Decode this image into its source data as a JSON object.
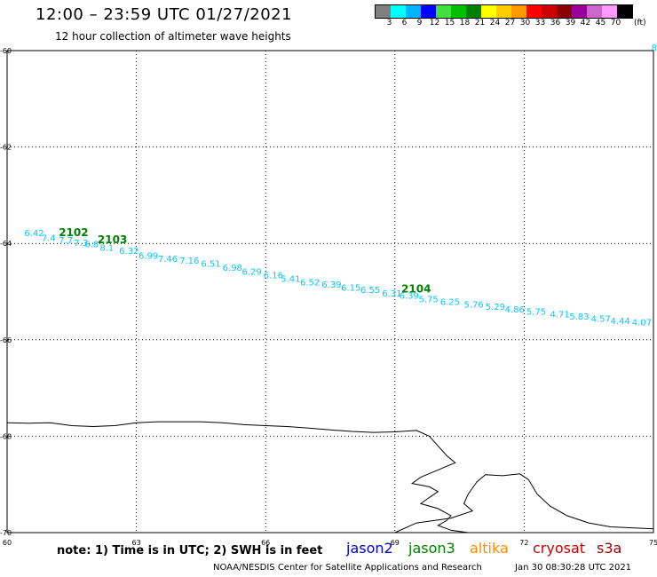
{
  "header": {
    "title": "12:00 – 23:59 UTC 01/27/2021",
    "subtitle": "12 hour collection of altimeter wave heights"
  },
  "legend": {
    "colors": [
      "#808080",
      "#00ffff",
      "#00b4ff",
      "#0000ff",
      "#40e040",
      "#00c000",
      "#008000",
      "#ffff00",
      "#ffcc00",
      "#ff9900",
      "#ff0000",
      "#cc0000",
      "#880000",
      "#990099",
      "#cc66cc",
      "#ff99ff",
      "#000000"
    ],
    "labels": [
      "3",
      "6",
      "9",
      "12",
      "15",
      "18",
      "21",
      "24",
      "27",
      "30",
      "33",
      "36",
      "39",
      "42",
      "45",
      "70"
    ],
    "units": "(ft)"
  },
  "map": {
    "lon_range": [
      60,
      75
    ],
    "lat_range": [
      -70,
      -60
    ],
    "x_ticks": [
      "60",
      "63",
      "66",
      "69",
      "72",
      "75"
    ],
    "y_ticks": [
      "-60",
      "-62",
      "-64",
      "-66",
      "-68",
      "-70"
    ],
    "track_color": "#00c8ff",
    "pass_color": "#008000",
    "passes": [
      {
        "label": "2102",
        "lon": 61.2,
        "lat": -63.85
      },
      {
        "label": "2103",
        "lon": 62.1,
        "lat": -64.0
      },
      {
        "label": "2104",
        "lon": 69.15,
        "lat": -65.02
      }
    ],
    "swh_points": [
      {
        "lon": 60.4,
        "lat": -63.85,
        "v": "6.42"
      },
      {
        "lon": 60.8,
        "lat": -63.95,
        "v": "7.4"
      },
      {
        "lon": 61.2,
        "lat": -64.0,
        "v": "7.7"
      },
      {
        "lon": 61.55,
        "lat": -64.05,
        "v": "7.3"
      },
      {
        "lon": 61.8,
        "lat": -64.08,
        "v": "6.8"
      },
      {
        "lon": 62.15,
        "lat": -64.15,
        "v": "8.1"
      },
      {
        "lon": 62.6,
        "lat": -64.22,
        "v": "6.32"
      },
      {
        "lon": 63.05,
        "lat": -64.32,
        "v": "6.99"
      },
      {
        "lon": 63.5,
        "lat": -64.38,
        "v": "7.46"
      },
      {
        "lon": 64.0,
        "lat": -64.42,
        "v": "7.16"
      },
      {
        "lon": 64.5,
        "lat": -64.48,
        "v": "6.51"
      },
      {
        "lon": 65.0,
        "lat": -64.57,
        "v": "6.98"
      },
      {
        "lon": 65.45,
        "lat": -64.65,
        "v": "6.29"
      },
      {
        "lon": 65.95,
        "lat": -64.72,
        "v": "6.16"
      },
      {
        "lon": 66.35,
        "lat": -64.8,
        "v": "5.41"
      },
      {
        "lon": 66.8,
        "lat": -64.87,
        "v": "6.52"
      },
      {
        "lon": 67.3,
        "lat": -64.92,
        "v": "6.39"
      },
      {
        "lon": 67.75,
        "lat": -64.98,
        "v": "6.15"
      },
      {
        "lon": 68.2,
        "lat": -65.03,
        "v": "6.55"
      },
      {
        "lon": 68.7,
        "lat": -65.1,
        "v": "6.31"
      },
      {
        "lon": 69.1,
        "lat": -65.15,
        "v": "6.39"
      },
      {
        "lon": 69.55,
        "lat": -65.22,
        "v": "5.75"
      },
      {
        "lon": 70.05,
        "lat": -65.28,
        "v": "6.25"
      },
      {
        "lon": 70.6,
        "lat": -65.33,
        "v": "5.76"
      },
      {
        "lon": 71.1,
        "lat": -65.38,
        "v": "5.29"
      },
      {
        "lon": 71.55,
        "lat": -65.43,
        "v": "4.86"
      },
      {
        "lon": 72.05,
        "lat": -65.48,
        "v": "5.75"
      },
      {
        "lon": 72.6,
        "lat": -65.53,
        "v": "4.71"
      },
      {
        "lon": 73.05,
        "lat": -65.58,
        "v": "5.83"
      },
      {
        "lon": 73.55,
        "lat": -65.63,
        "v": "4.57"
      },
      {
        "lon": 74.0,
        "lat": -65.67,
        "v": "4.44"
      },
      {
        "lon": 74.5,
        "lat": -65.7,
        "v": "4.07"
      },
      {
        "lon": 74.95,
        "lat": -60.0,
        "v": "8."
      }
    ],
    "coastline": [
      [
        60.0,
        -67.72
      ],
      [
        60.5,
        -67.73
      ],
      [
        61.0,
        -67.72
      ],
      [
        61.5,
        -67.78
      ],
      [
        62.0,
        -67.8
      ],
      [
        62.5,
        -67.78
      ],
      [
        63.0,
        -67.72
      ],
      [
        63.5,
        -67.7
      ],
      [
        64.0,
        -67.7
      ],
      [
        64.5,
        -67.7
      ],
      [
        65.0,
        -67.72
      ],
      [
        65.5,
        -67.76
      ],
      [
        66.0,
        -67.78
      ],
      [
        66.5,
        -67.8
      ],
      [
        67.0,
        -67.83
      ],
      [
        67.5,
        -67.87
      ],
      [
        68.0,
        -67.9
      ],
      [
        68.5,
        -67.92
      ],
      [
        69.0,
        -67.91
      ],
      [
        69.5,
        -67.88
      ],
      [
        69.8,
        -68.0
      ],
      [
        70.0,
        -68.2
      ],
      [
        70.2,
        -68.4
      ],
      [
        70.4,
        -68.55
      ],
      [
        70.0,
        -68.7
      ],
      [
        69.6,
        -68.85
      ],
      [
        69.4,
        -68.98
      ],
      [
        69.8,
        -69.05
      ],
      [
        70.0,
        -69.15
      ],
      [
        69.8,
        -69.27
      ],
      [
        69.6,
        -69.4
      ],
      [
        70.0,
        -69.5
      ],
      [
        70.3,
        -69.65
      ],
      [
        70.2,
        -69.75
      ],
      [
        70.0,
        -69.85
      ],
      [
        70.3,
        -69.95
      ],
      [
        70.7,
        -70.0
      ]
    ],
    "coastline2": [
      [
        69.0,
        -70.0
      ],
      [
        69.5,
        -69.8
      ],
      [
        70.3,
        -69.7
      ],
      [
        70.8,
        -69.55
      ],
      [
        70.6,
        -69.4
      ],
      [
        70.7,
        -69.2
      ],
      [
        70.9,
        -68.95
      ],
      [
        71.1,
        -68.8
      ],
      [
        71.5,
        -68.82
      ],
      [
        71.9,
        -68.78
      ],
      [
        72.1,
        -68.9
      ],
      [
        72.3,
        -69.2
      ],
      [
        72.6,
        -69.45
      ],
      [
        73.0,
        -69.65
      ],
      [
        73.5,
        -69.8
      ],
      [
        74.0,
        -69.88
      ],
      [
        74.5,
        -69.9
      ],
      [
        75.0,
        -69.92
      ]
    ]
  },
  "footer": {
    "note": "note:  1) Time is in UTC;  2) SWH is in feet",
    "credit": "NOAA/NESDIS Center for Satellite Applications and Research",
    "stamp": "Jan 30 08:30:28 UTC 2021"
  },
  "satellites": [
    {
      "name": "jason2",
      "color": "#0000cc"
    },
    {
      "name": "jason3",
      "color": "#008000"
    },
    {
      "name": "altika",
      "color": "#ff8c00"
    },
    {
      "name": "cryosat",
      "color": "#cc0000"
    },
    {
      "name": "s3a",
      "color": "#990000"
    }
  ]
}
